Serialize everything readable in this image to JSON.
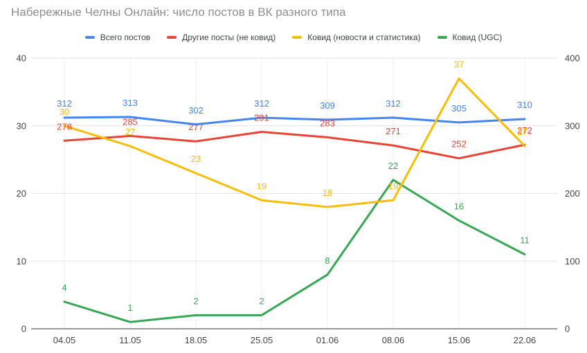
{
  "title": "Набережные Челны Онлайн: число постов в ВК разного типа",
  "colors": {
    "blue": "#4285F4",
    "red": "#EA4335",
    "yellow": "#FBBC04",
    "green": "#34A853",
    "title_text": "#8f8f8f",
    "axis_text": "#424242",
    "gridline": "#e3e3e3",
    "v_gridline": "#efefef",
    "axis_line": "#333333"
  },
  "chart_data": {
    "type": "line",
    "title": "Набережные Челны Онлайн: число постов в ВК разного типа",
    "x": [
      "04.05",
      "11.05",
      "18.05",
      "25.05",
      "01.06",
      "08.06",
      "15.06",
      "22.06"
    ],
    "series": [
      {
        "name": "Всего постов",
        "color": "#4285F4",
        "axis": "right",
        "values": [
          312,
          313,
          302,
          312,
          309,
          312,
          305,
          310
        ]
      },
      {
        "name": "Другие посты (не ковид)",
        "color": "#EA4335",
        "axis": "right",
        "values": [
          278,
          285,
          277,
          291,
          283,
          271,
          252,
          272
        ]
      },
      {
        "name": "Ковид (новости и статистика)",
        "color": "#FBBC04",
        "axis": "left",
        "values": [
          30,
          27,
          23,
          19,
          18,
          19,
          37,
          27
        ]
      },
      {
        "name": "Ковид (UGC)",
        "color": "#34A853",
        "axis": "left",
        "values": [
          4,
          1,
          2,
          2,
          8,
          22,
          16,
          11
        ]
      }
    ],
    "left_axis": {
      "min": 0,
      "max": 40,
      "ticks": [
        0,
        10,
        20,
        30,
        40
      ]
    },
    "right_axis": {
      "min": 0,
      "max": 400,
      "ticks": [
        0,
        100,
        200,
        300,
        400
      ]
    },
    "legend_position": "top",
    "grid": true,
    "data_labels": true,
    "xlabel": "",
    "ylabel": ""
  }
}
